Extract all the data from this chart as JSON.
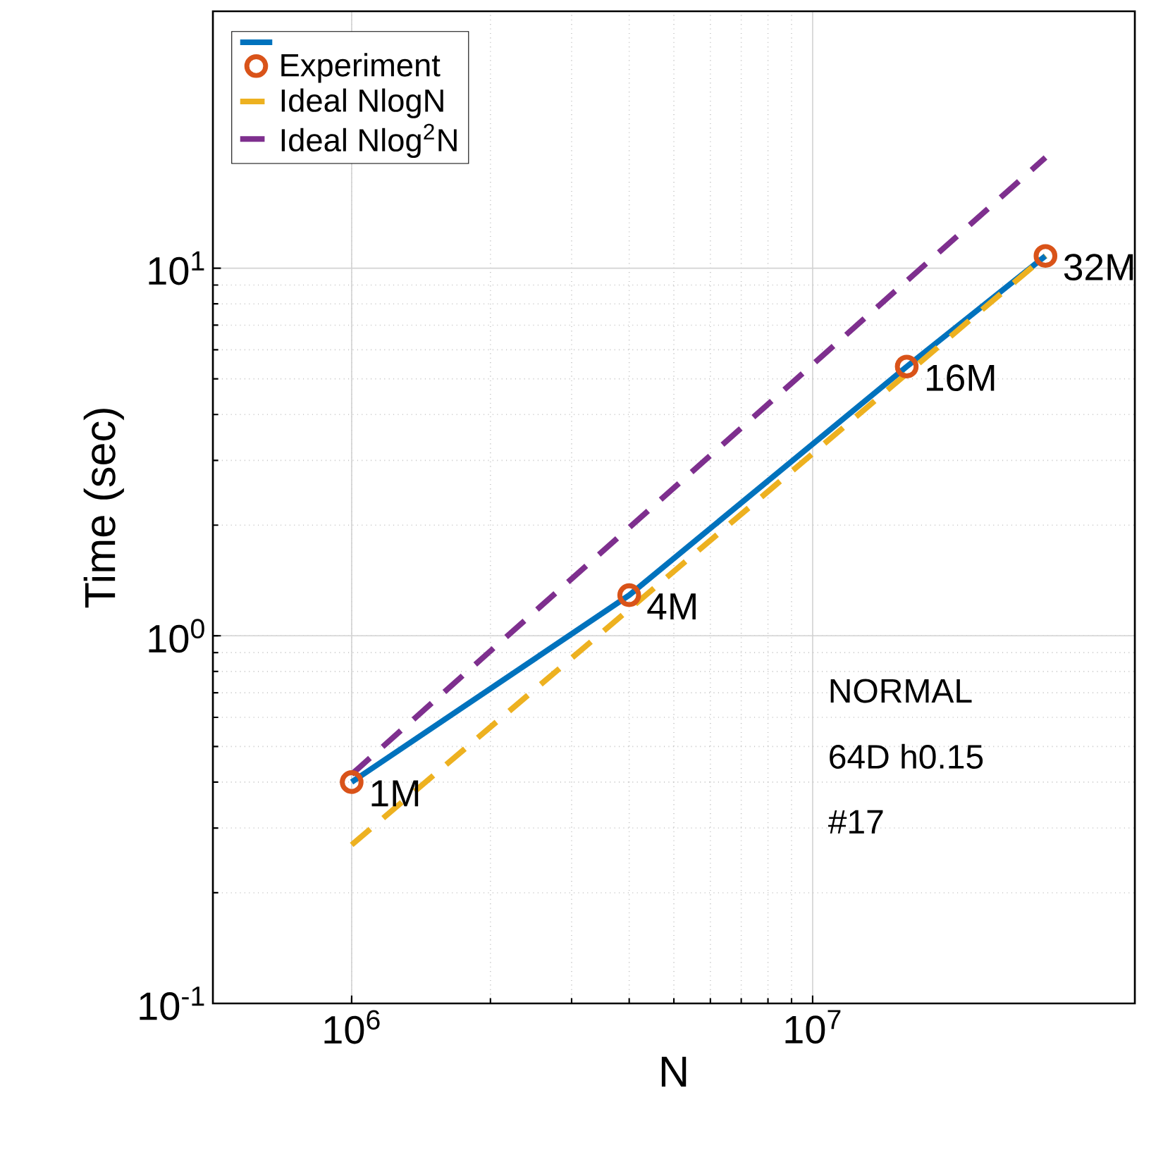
{
  "chart_data": {
    "type": "line",
    "xlabel": "N",
    "ylabel": "Time (sec)",
    "log": "xy",
    "xlim": [
      500000,
      50000000
    ],
    "ylim": [
      0.1,
      50
    ],
    "xticks": [
      {
        "value": 1000000,
        "label": "10$^{6}$"
      },
      {
        "value": 10000000,
        "label": "10$^{7}$"
      }
    ],
    "yticks": [
      {
        "value": 0.1,
        "label": "10$^{-1}$"
      },
      {
        "value": 1,
        "label": "10$^{0}$"
      },
      {
        "value": 10,
        "label": "10$^{1}$"
      }
    ],
    "grid": true,
    "legend": "top left",
    "series": [
      {
        "color": "#0072bd",
        "line_style": "solid",
        "x": [
          1000000,
          4000000,
          16000000,
          32000000
        ],
        "values": [
          0.4,
          1.29,
          5.4,
          10.8
        ]
      },
      {
        "type": "scatter",
        "name": "Experiment",
        "color": "#d95319",
        "marker": "circle",
        "x": [
          1000000,
          4000000,
          16000000,
          32000000
        ],
        "values": [
          0.4,
          1.29,
          5.4,
          10.8
        ]
      },
      {
        "name": "Ideal NlogN",
        "color": "#edb120",
        "line_style": "dashed",
        "x": [
          1000000,
          32000000
        ],
        "values": [
          0.27,
          10.8
        ]
      },
      {
        "name": "Ideal Nlog$^{2}$N",
        "color": "#7e2f8e",
        "line_style": "dashed",
        "x": [
          1000000,
          32000000
        ],
        "values": [
          0.42,
          20
        ]
      }
    ],
    "annotations": [
      {
        "text": "1M",
        "x": 1000000,
        "y": 0.4
      },
      {
        "text": "4M",
        "x": 4000000,
        "y": 1.29
      },
      {
        "text": "16M",
        "x": 16000000,
        "y": 5.4
      },
      {
        "text": "32M",
        "x": 32000000,
        "y": 10.8
      },
      "NORMAL",
      "64D h0.15",
      "#17"
    ]
  }
}
